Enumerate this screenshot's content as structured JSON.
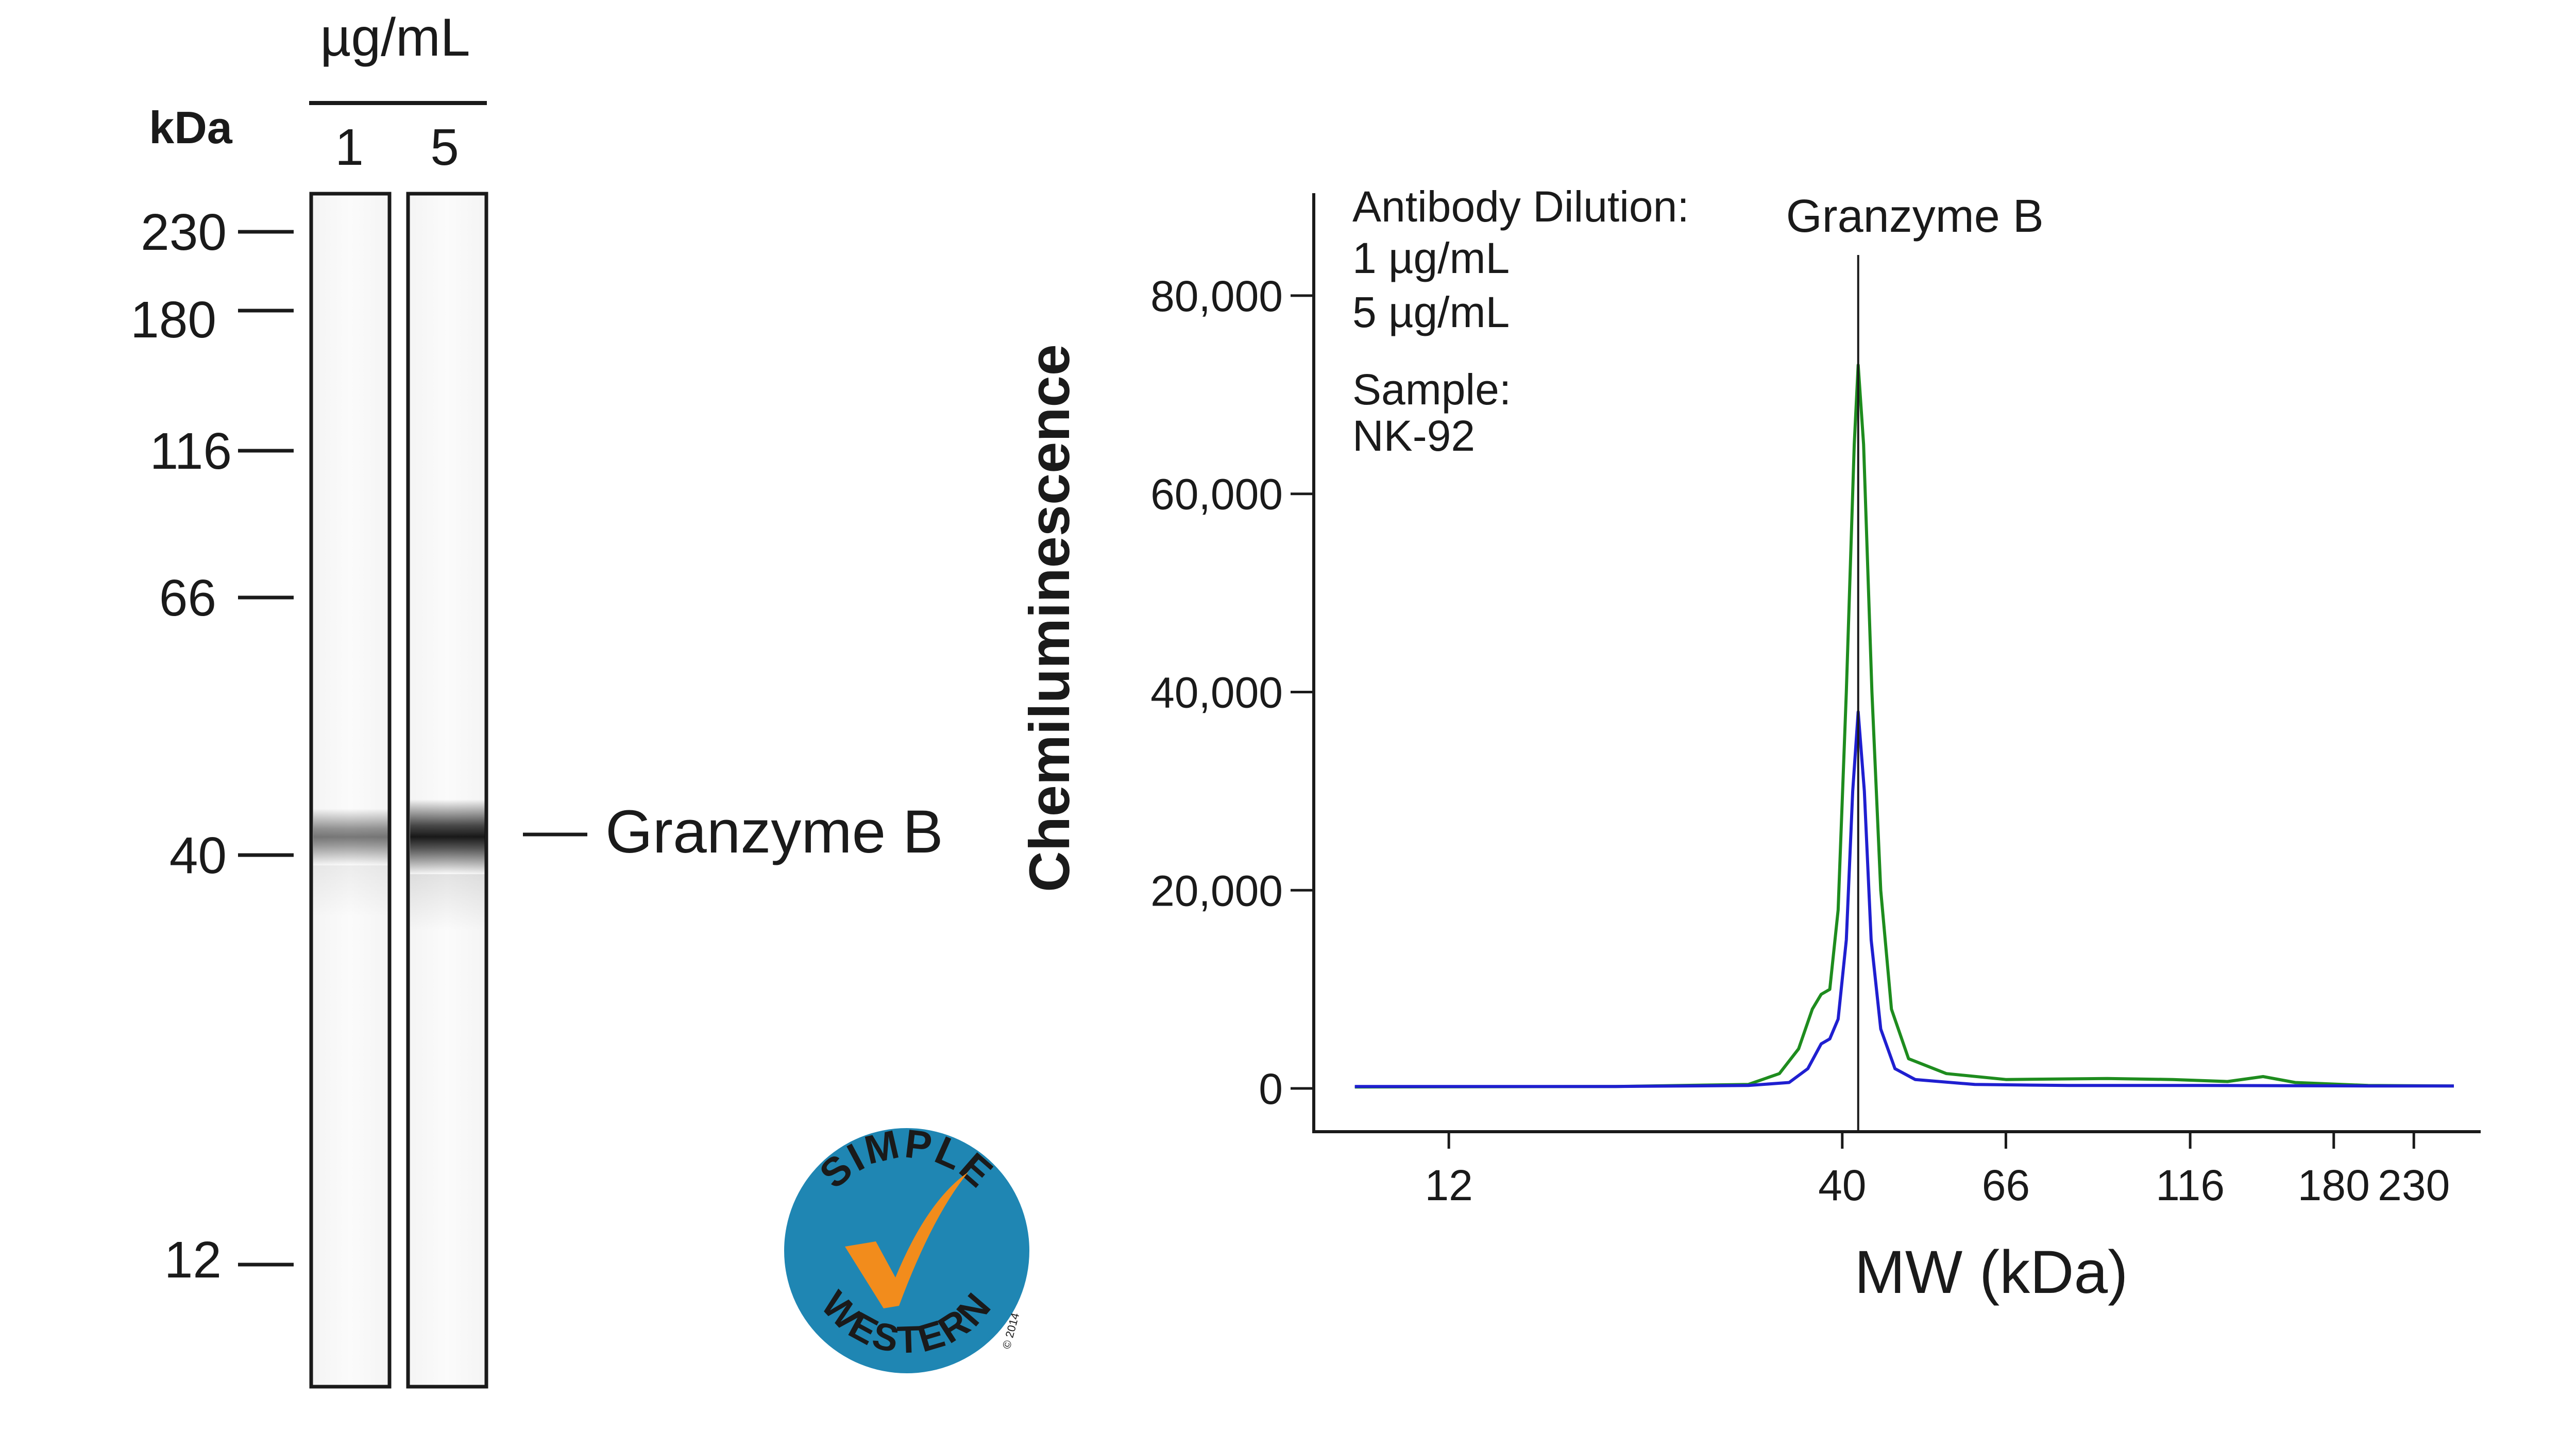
{
  "gel": {
    "unit_label": "µg/mL",
    "kda_label": "kDa",
    "lanes": [
      {
        "label": "1",
        "intensity": 0.55
      },
      {
        "label": "5",
        "intensity": 1.0
      }
    ],
    "markers": [
      "230",
      "180",
      "116",
      "66",
      "40",
      "12"
    ],
    "band_label": "Granzyme B"
  },
  "logo": {
    "top_text": "SIMPLE",
    "bottom_text": "WESTERN",
    "copyright": "© 2014",
    "colors": {
      "circle": "#1f86b3",
      "check": "#f28c1c"
    }
  },
  "chart_data": {
    "type": "line",
    "title": "",
    "xlabel": "MW (kDa)",
    "ylabel": "Chemiluminescence",
    "x_scale": "log",
    "x_ticks": [
      12,
      40,
      66,
      116,
      180,
      230
    ],
    "y_ticks": [
      0,
      20000,
      40000,
      60000,
      80000
    ],
    "y_tick_labels": [
      "0",
      "20,000",
      "40,000",
      "60,000",
      "80,000"
    ],
    "xlim": [
      8,
      280
    ],
    "ylim": [
      -4000,
      88000
    ],
    "legend": {
      "heading": "Antibody Dilution:",
      "entries": [
        "1 µg/mL",
        "5 µg/mL"
      ],
      "sample_heading": "Sample:",
      "sample_value": "NK-92",
      "placement": "top-left"
    },
    "annotation": {
      "label": "Granzyme B",
      "x": 42
    },
    "series": [
      {
        "name": "1 µg/mL",
        "color": "#1f1fd0",
        "points": [
          [
            9,
            200
          ],
          [
            20,
            200
          ],
          [
            30,
            300
          ],
          [
            34,
            600
          ],
          [
            36,
            2000
          ],
          [
            37.5,
            4500
          ],
          [
            38.5,
            5000
          ],
          [
            39.5,
            7000
          ],
          [
            40.5,
            15000
          ],
          [
            41.3,
            30000
          ],
          [
            42,
            38000
          ],
          [
            42.8,
            30000
          ],
          [
            43.7,
            15000
          ],
          [
            45,
            6000
          ],
          [
            47,
            2000
          ],
          [
            50,
            900
          ],
          [
            60,
            400
          ],
          [
            80,
            300
          ],
          [
            120,
            300
          ],
          [
            200,
            250
          ],
          [
            260,
            250
          ]
        ]
      },
      {
        "name": "5 µg/mL",
        "color": "#1e8c1e",
        "points": [
          [
            9,
            150
          ],
          [
            20,
            200
          ],
          [
            30,
            400
          ],
          [
            33,
            1500
          ],
          [
            35,
            4000
          ],
          [
            36.5,
            8000
          ],
          [
            37.5,
            9500
          ],
          [
            38.5,
            10000
          ],
          [
            39.5,
            18000
          ],
          [
            40.5,
            40000
          ],
          [
            41.5,
            65000
          ],
          [
            42,
            73000
          ],
          [
            42.7,
            65000
          ],
          [
            43.8,
            40000
          ],
          [
            45,
            20000
          ],
          [
            46.5,
            8000
          ],
          [
            49,
            3000
          ],
          [
            55,
            1500
          ],
          [
            66,
            900
          ],
          [
            90,
            1000
          ],
          [
            110,
            900
          ],
          [
            130,
            700
          ],
          [
            145,
            1200
          ],
          [
            160,
            600
          ],
          [
            200,
            300
          ],
          [
            260,
            250
          ]
        ]
      }
    ]
  }
}
